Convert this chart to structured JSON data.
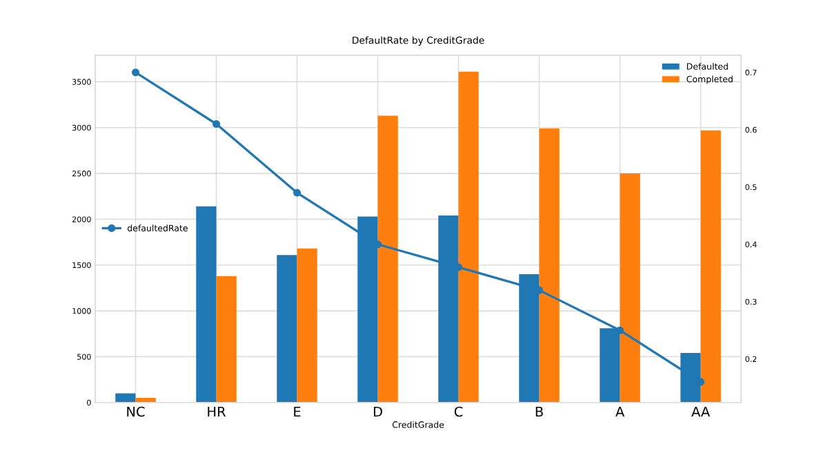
{
  "chart_data": {
    "type": "bar",
    "title": "DefaultRate by CreditGrade",
    "xlabel": "CreditGrade",
    "categories": [
      "NC",
      "HR",
      "E",
      "D",
      "C",
      "B",
      "A",
      "AA"
    ],
    "series": [
      {
        "name": "Defaulted",
        "color": "#1f77b4",
        "values": [
          100,
          2140,
          1610,
          2030,
          2040,
          1400,
          810,
          540
        ]
      },
      {
        "name": "Completed",
        "color": "#ff7f0e",
        "values": [
          50,
          1380,
          1680,
          3130,
          3610,
          2990,
          2500,
          2970
        ]
      },
      {
        "name": "defaultedRate",
        "type": "line",
        "axis": "y2",
        "color": "#1f77b4",
        "values": [
          0.7,
          0.61,
          0.49,
          0.4,
          0.36,
          0.32,
          0.25,
          0.16
        ]
      }
    ],
    "ylim": [
      0,
      3790
    ],
    "yticks": [
      0,
      500,
      1000,
      1500,
      2000,
      2500,
      3000,
      3500
    ],
    "y2lim": [
      0.124,
      0.73
    ],
    "y2ticks": [
      0.2,
      0.3,
      0.4,
      0.5,
      0.6,
      0.7
    ],
    "grid": true,
    "legend": "top right",
    "marker": "circle",
    "line_style": "solid"
  }
}
